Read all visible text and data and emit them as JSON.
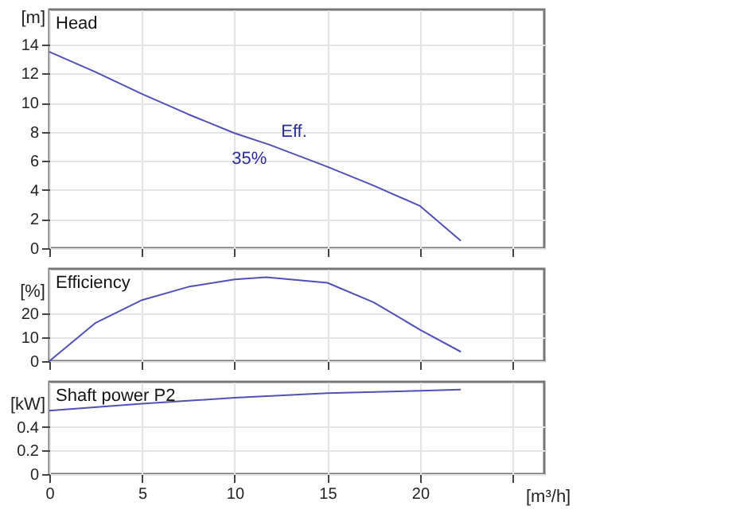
{
  "chart_data": [
    {
      "type": "line",
      "title": "Head",
      "ylabel": "[m]",
      "x": [
        0,
        2.5,
        5,
        7.5,
        10,
        11.9,
        15,
        17.5,
        20,
        22.2
      ],
      "values": [
        13.5,
        12.1,
        10.6,
        9.2,
        7.9,
        7.1,
        5.6,
        4.3,
        2.9,
        0.5
      ],
      "color": "#5050b8",
      "annotations": [
        {
          "text": "Eff.",
          "x": 11.9,
          "y": 7.1
        },
        {
          "text": "35%",
          "x": 11.9,
          "y": 7.1
        }
      ],
      "xlim": [
        0,
        26.7
      ],
      "xticks": [
        0,
        5,
        10,
        15,
        20,
        25
      ],
      "ylim": [
        0,
        16.4
      ],
      "yticks": [
        0,
        2,
        4,
        6,
        8,
        10,
        12,
        14
      ],
      "grid": true,
      "tick_labels": "y"
    },
    {
      "type": "line",
      "title": "Efficiency",
      "ylabel": "[%]",
      "x": [
        0,
        2.5,
        5,
        7.5,
        10,
        11.7,
        15,
        17.5,
        20,
        22.2
      ],
      "values": [
        0,
        16,
        25.5,
        31,
        34.1,
        35,
        32.7,
        24.5,
        13.1,
        3.9
      ],
      "color": "#5050b8",
      "xlim": [
        0,
        26.7
      ],
      "xticks": [
        0,
        5,
        10,
        15,
        20,
        25
      ],
      "ylim": [
        0,
        38.5
      ],
      "yticks": [
        0,
        10,
        20
      ],
      "grid": true,
      "tick_labels": "y"
    },
    {
      "type": "line",
      "title": "Shaft power P2",
      "ylabel": "[kW]",
      "xlabel": "[m³/h]",
      "x": [
        0,
        5,
        10,
        15,
        20,
        22.2
      ],
      "values": [
        0.54,
        0.6,
        0.65,
        0.69,
        0.71,
        0.72
      ],
      "color": "#5050b8",
      "xlim": [
        0,
        26.7
      ],
      "xticks": [
        0,
        5,
        10,
        15,
        20,
        {
          "value": 25,
          "label": null
        }
      ],
      "ylim": [
        0,
        0.786
      ],
      "yticks": [
        0,
        0.2,
        0.4
      ],
      "grid": true
    }
  ]
}
